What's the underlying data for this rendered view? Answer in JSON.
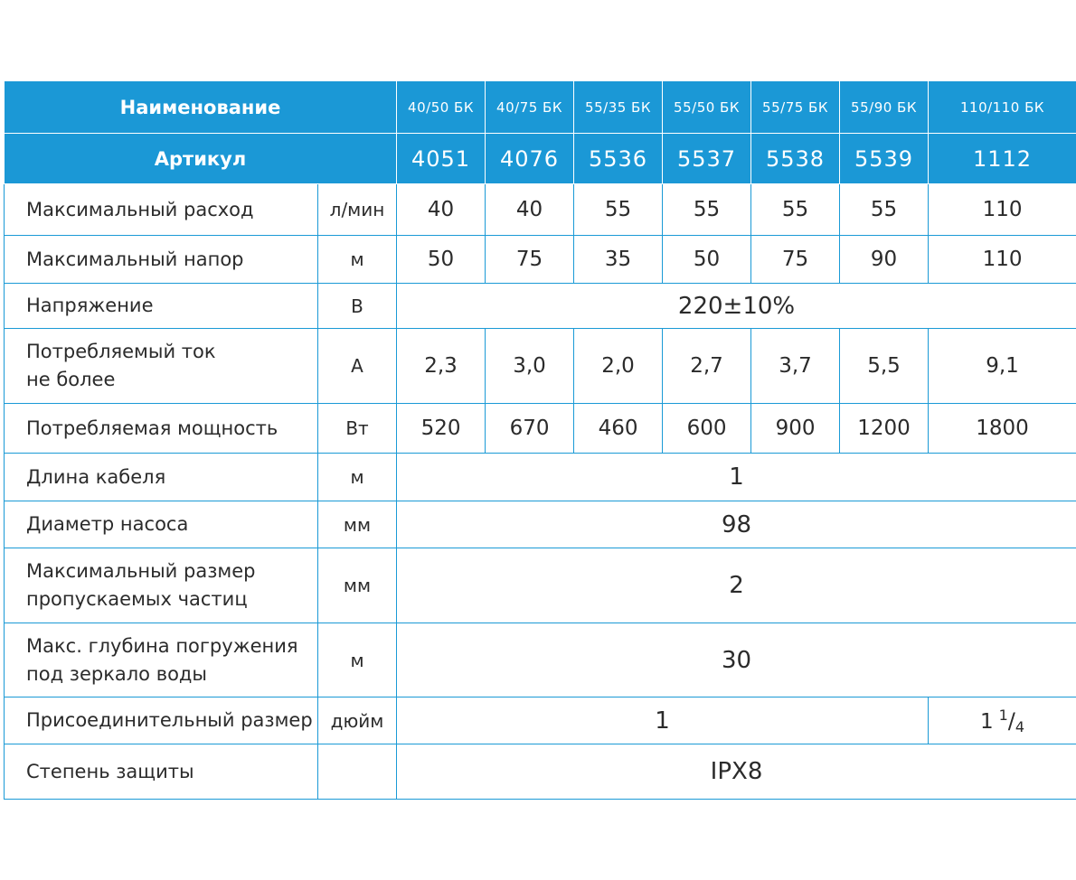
{
  "header": {
    "name_label": "Наименование",
    "models": [
      "40/50 БК",
      "40/75 БК",
      "55/35 БК",
      "55/50 БК",
      "55/75 БК",
      "55/90 БК",
      "110/110 БК"
    ],
    "article_label": "Артикул",
    "articles": [
      "4051",
      "4076",
      "5536",
      "5537",
      "5538",
      "5539",
      "1112"
    ]
  },
  "rows": {
    "max_flow": {
      "label": "Максимальный расход",
      "unit": "л/мин",
      "values": [
        "40",
        "40",
        "55",
        "55",
        "55",
        "55",
        "110"
      ]
    },
    "max_head": {
      "label": "Максимальный напор",
      "unit": "м",
      "values": [
        "50",
        "75",
        "35",
        "50",
        "75",
        "90",
        "110"
      ]
    },
    "voltage": {
      "label": "Напряжение",
      "unit": "В",
      "value": "220±10%"
    },
    "current": {
      "label_line1": "Потребляемый ток",
      "label_line2": "не более",
      "unit": "А",
      "values": [
        "2,3",
        "3,0",
        "2,0",
        "2,7",
        "3,7",
        "5,5",
        "9,1"
      ]
    },
    "power": {
      "label": "Потребляемая мощность",
      "unit": "Вт",
      "values": [
        "520",
        "670",
        "460",
        "600",
        "900",
        "1200",
        "1800"
      ]
    },
    "cable_length": {
      "label": "Длина кабеля",
      "unit": "м",
      "value": "1"
    },
    "pump_diameter": {
      "label": "Диаметр насоса",
      "unit": "мм",
      "value": "98"
    },
    "particle_size": {
      "label_line1": "Максимальный размер",
      "label_line2": "пропускаемых частиц",
      "unit": "мм",
      "value": "2"
    },
    "immersion_depth": {
      "label_line1": "Макс. глубина погружения",
      "label_line2": "под зеркало воды",
      "unit": "м",
      "value": "30"
    },
    "connection": {
      "label": "Присоединительный размер",
      "unit": "дюйм",
      "value": "1",
      "value_large_whole": "1",
      "value_large_num": "1",
      "value_large_den": "4"
    },
    "protection": {
      "label": "Степень защиты",
      "unit": "",
      "value": "IPX8"
    }
  }
}
